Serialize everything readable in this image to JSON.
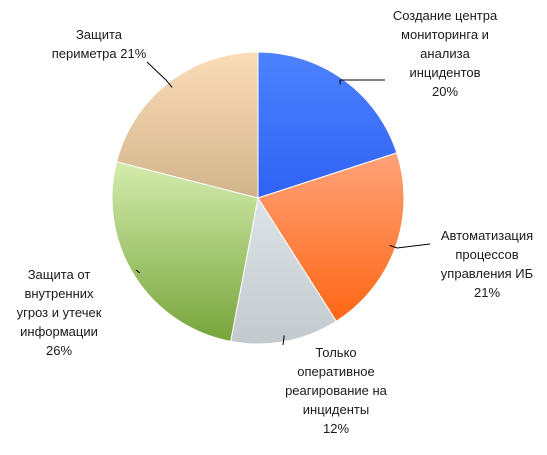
{
  "chart_data": {
    "type": "pie",
    "title": "",
    "unit": "%",
    "slices": [
      {
        "label": "Создание центра мониторинга и анализа инцидентов",
        "label_lines": [
          "Создание центра",
          "мониторинга и",
          "анализа",
          "инцидентов",
          "20%"
        ],
        "value": 20,
        "color_light": "#4d82ff",
        "color_dark": "#2f62f2"
      },
      {
        "label": "Автоматизация процессов управления ИБ",
        "label_lines": [
          "Автоматизация",
          "процессов",
          "управления ИБ",
          "21%"
        ],
        "value": 21,
        "color_light": "#ffa27a",
        "color_dark": "#ff6614"
      },
      {
        "label": "Только оперативное реагирование на инциденты",
        "label_lines": [
          "Только",
          "оперативное",
          "реагирование на",
          "инциденты",
          "12%"
        ],
        "value": 12,
        "color_light": "#dde3e6",
        "color_dark": "#c2cace"
      },
      {
        "label": "Защита от внутренних угроз и утечек информации",
        "label_lines": [
          "Защита от",
          "внутренних",
          "угроз и утечек",
          "информации",
          "26%"
        ],
        "value": 26,
        "color_light": "#d4ecae",
        "color_dark": "#77a43a"
      },
      {
        "label": "Защита периметра",
        "label_lines": [
          "Защита",
          "периметра  21%"
        ],
        "value": 21,
        "color_light": "#fbdcb8",
        "color_dark": "#d2b48c"
      }
    ],
    "legend": "none",
    "data_labels": "outside-with-leader-lines"
  }
}
